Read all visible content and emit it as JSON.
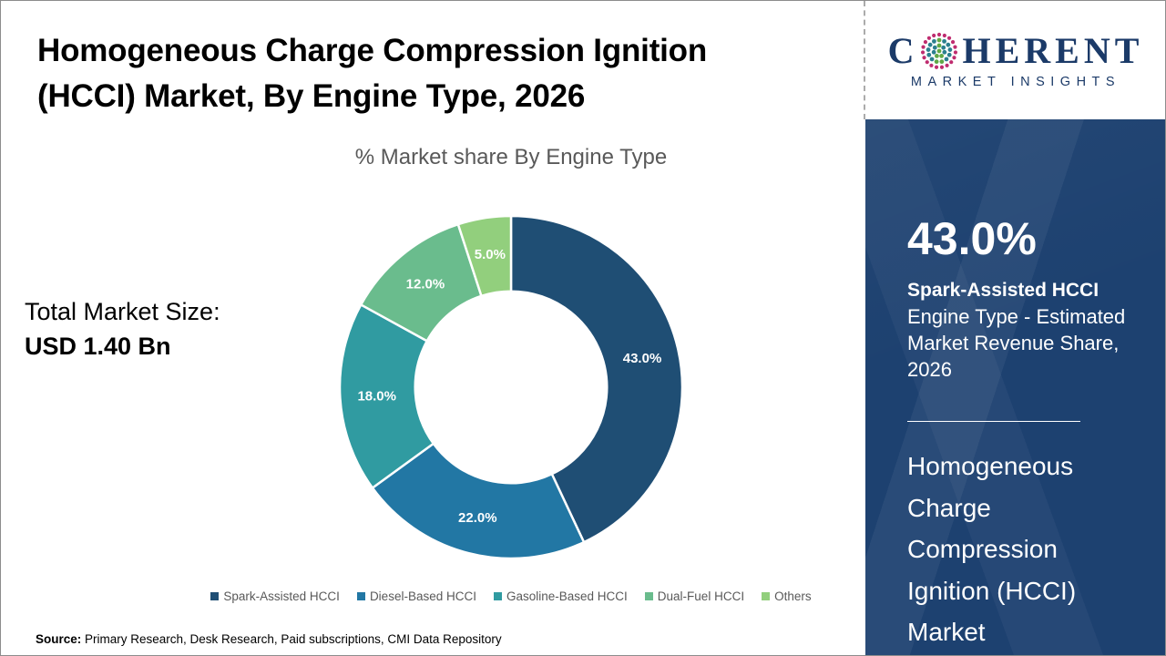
{
  "header": {
    "title_lines": [
      "Homogeneous Charge Compression Ignition",
      "(HCCI) Market, By Engine Type, 2026"
    ]
  },
  "logo": {
    "prefix": "C",
    "suffix": "HERENT",
    "subtitle": "MARKET INSIGHTS",
    "text_color": "#1b3a68",
    "globe_colors": {
      "outer": "#bf2c6f",
      "mid": "#2b7f8e",
      "band": "#5fa845"
    }
  },
  "chart_data": {
    "type": "pie",
    "subtype": "donut",
    "title": "% Market share By Engine Type",
    "categories": [
      "Spark-Assisted HCCI",
      "Diesel-Based HCCI",
      "Gasoline-Based HCCI",
      "Dual-Fuel HCCI",
      "Others"
    ],
    "values": [
      43.0,
      22.0,
      18.0,
      12.0,
      5.0
    ],
    "data_labels": [
      "43.0%",
      "22.0%",
      "18.0%",
      "12.0%",
      "5.0%"
    ],
    "colors": [
      "#1F4E74",
      "#2277A4",
      "#309BA1",
      "#6ABC8D",
      "#92CF7D"
    ],
    "start_angle_deg": 0,
    "direction": "clockwise",
    "donut_hole_ratio": 0.56,
    "legend_position": "bottom",
    "label_color": "#ffffff"
  },
  "total_market": {
    "label": "Total Market Size:",
    "value": "USD 1.40 Bn"
  },
  "sidebar": {
    "bg_color": "#1d4170",
    "stat_value": "43.0%",
    "stat_title": "Spark-Assisted HCCI",
    "stat_desc_lines": [
      "Engine Type - Estimated",
      "Market Revenue Share,",
      "2026"
    ],
    "market_name_lines": [
      "Homogeneous",
      "Charge",
      "Compression",
      "Ignition (HCCI)",
      "Market"
    ]
  },
  "source": {
    "label": "Source:",
    "text": " Primary Research, Desk Research, Paid subscriptions, CMI Data Repository"
  }
}
